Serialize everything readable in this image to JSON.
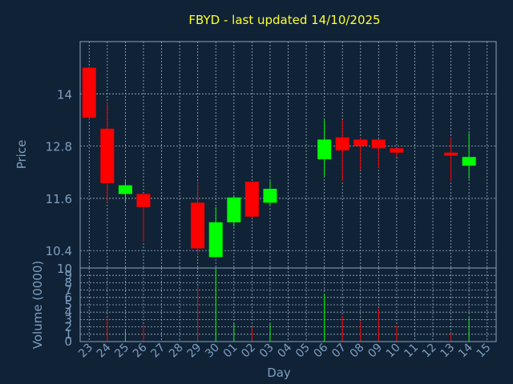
{
  "chart_data": {
    "type": "candlestick",
    "title": "FBYD - last updated 14/10/2025",
    "xlabel": "Day",
    "ylabel": "Price",
    "volume_label": "Volume (0000)",
    "x_ticks": [
      "23",
      "24",
      "25",
      "26",
      "27",
      "28",
      "29",
      "30",
      "01",
      "02",
      "03",
      "04",
      "05",
      "06",
      "07",
      "08",
      "09",
      "10",
      "11",
      "12",
      "13",
      "14",
      "15"
    ],
    "price_ticks": [
      10,
      10.4,
      11.6,
      12.8,
      14
    ],
    "price_ylim": [
      10,
      15.2
    ],
    "volume_ticks": [
      0,
      1,
      2,
      3,
      4,
      5,
      6,
      7,
      8,
      9
    ],
    "volume_ylim": [
      0,
      10
    ],
    "grid": true,
    "up_color": "#00ff00",
    "down_color": "#ff0000",
    "candles": [
      {
        "day": "23",
        "open": 14.6,
        "high": 14.6,
        "low": 13.4,
        "close": 13.45,
        "volume": 0
      },
      {
        "day": "24",
        "open": 13.2,
        "high": 13.8,
        "low": 11.5,
        "close": 11.95,
        "volume": 3.2
      },
      {
        "day": "25",
        "open": 11.7,
        "high": 12.0,
        "low": 11.5,
        "close": 11.9,
        "volume": 1.5
      },
      {
        "day": "26",
        "open": 11.7,
        "high": 11.7,
        "low": 10.6,
        "close": 11.4,
        "volume": 2.3
      },
      {
        "day": "29",
        "open": 11.5,
        "high": 12.0,
        "low": 10.3,
        "close": 10.45,
        "volume": 7.5
      },
      {
        "day": "30",
        "open": 10.25,
        "high": 11.4,
        "low": 10.25,
        "close": 11.05,
        "volume": 10
      },
      {
        "day": "01",
        "open": 11.05,
        "high": 11.65,
        "low": 10.95,
        "close": 11.62,
        "volume": 2.5
      },
      {
        "day": "02",
        "open": 11.98,
        "high": 11.98,
        "low": 11.15,
        "close": 11.18,
        "volume": 2.0
      },
      {
        "day": "03",
        "open": 11.5,
        "high": 12.0,
        "low": 11.45,
        "close": 11.82,
        "volume": 2.5
      },
      {
        "day": "06",
        "open": 12.5,
        "high": 13.4,
        "low": 12.1,
        "close": 12.95,
        "volume": 6.5
      },
      {
        "day": "07",
        "open": 13.0,
        "high": 13.4,
        "low": 12.0,
        "close": 12.7,
        "volume": 3.5
      },
      {
        "day": "08",
        "open": 12.95,
        "high": 13.0,
        "low": 12.25,
        "close": 12.8,
        "volume": 2.8
      },
      {
        "day": "09",
        "open": 12.95,
        "high": 12.95,
        "low": 12.3,
        "close": 12.75,
        "volume": 4.5
      },
      {
        "day": "10",
        "open": 12.75,
        "high": 12.75,
        "low": 12.55,
        "close": 12.65,
        "volume": 2.2
      },
      {
        "day": "13",
        "open": 12.65,
        "high": 13.0,
        "low": 12.0,
        "close": 12.58,
        "volume": 1.2
      },
      {
        "day": "14",
        "open": 12.35,
        "high": 13.1,
        "low": 12.05,
        "close": 12.55,
        "volume": 3.2
      }
    ]
  }
}
